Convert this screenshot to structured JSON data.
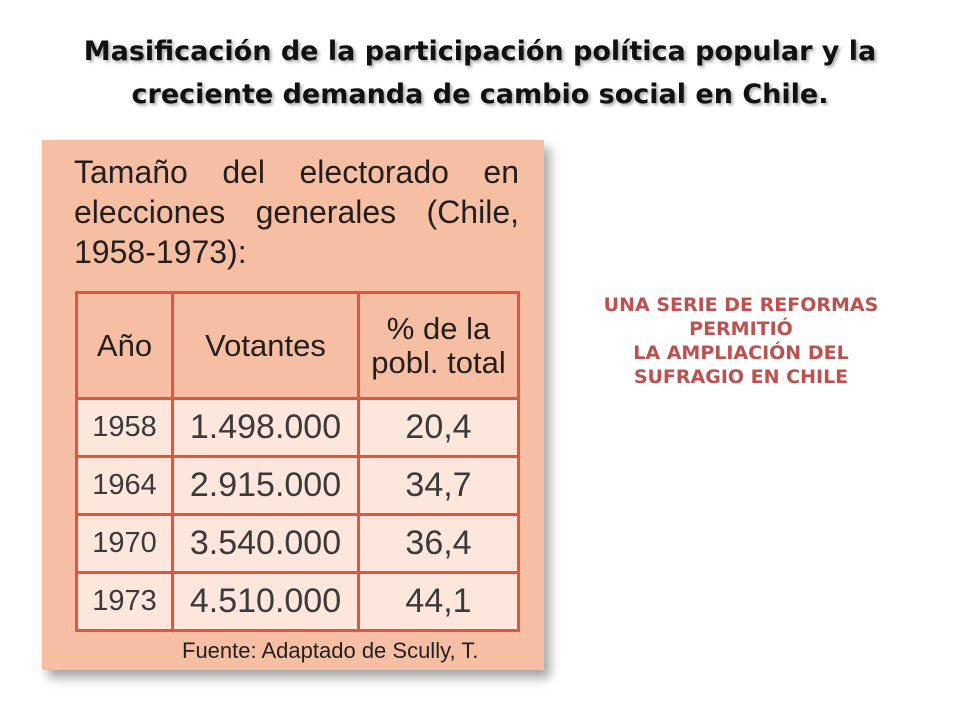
{
  "slide": {
    "title_lines": [
      "Masificación de la participación política popular y la",
      "creciente demanda de cambio social en Chile."
    ],
    "side_note_lines": [
      "UNA SERIE DE REFORMAS",
      "PERMITIÓ",
      "LA AMPLIACIÓN DEL",
      "SUFRAGIO EN CHILE"
    ]
  },
  "card": {
    "heading_lines": [
      "Tamaño del electorado en",
      "elecciones generales (Chile,",
      "1958-1973):"
    ],
    "table": {
      "headers": [
        "Año",
        "Votantes",
        "% de la pobl. total"
      ],
      "header_pct_lines": [
        "% de la",
        "pobl. total"
      ],
      "rows": [
        {
          "year": "1958",
          "voters": "1.498.000",
          "pct": "20,4"
        },
        {
          "year": "1964",
          "voters": "2.915.000",
          "pct": "34,7"
        },
        {
          "year": "1970",
          "voters": "3.540.000",
          "pct": "36,4"
        },
        {
          "year": "1973",
          "voters": "4.510.000",
          "pct": "44,1"
        }
      ]
    },
    "source": "Fuente: Adaptado de Scully, T."
  },
  "colors": {
    "card_background": "#f6bfa3",
    "table_border": "#e8533f",
    "cell_background": "#fde6dc",
    "side_note": "#c0504d"
  },
  "chart_data": {
    "type": "table",
    "title": "Tamaño del electorado en elecciones generales (Chile, 1958-1973):",
    "columns": [
      "Año",
      "Votantes",
      "% de la pobl. total"
    ],
    "rows": [
      [
        "1958",
        "1.498.000",
        "20,4"
      ],
      [
        "1964",
        "2.915.000",
        "34,7"
      ],
      [
        "1970",
        "3.540.000",
        "36,4"
      ],
      [
        "1973",
        "4.510.000",
        "44,1"
      ]
    ]
  }
}
